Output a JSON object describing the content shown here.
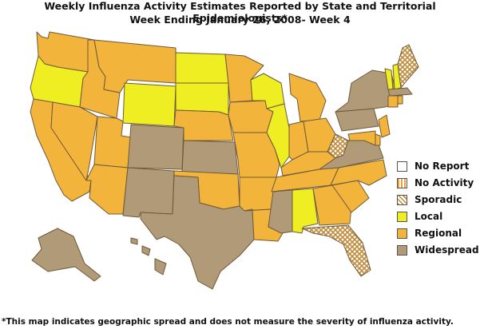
{
  "title_line1": "Weekly Influenza Activity Estimates Reported by State and Territorial Epidemiologists*",
  "title_line2": "Week Ending January 26, 2008- Week  4",
  "footnote": "*This map indicates geographic spread and does not measure the severity of influenza activity.",
  "colors": {
    "no_report": "#ffffff",
    "no_activity_bg": "#ffffff",
    "no_activity_stripe": "#e8a040",
    "sporadic_bg": "#ffffff",
    "sporadic_hatch": "#c08a3a",
    "local": "#eeee22",
    "regional": "#f2b43a",
    "widespread": "#b09a78",
    "border": "#6e5a3a"
  },
  "legend": [
    {
      "key": "no_report",
      "label": "No Report"
    },
    {
      "key": "no_activity",
      "label": "No Activity"
    },
    {
      "key": "sporadic",
      "label": "Sporadic"
    },
    {
      "key": "local",
      "label": "Local"
    },
    {
      "key": "regional",
      "label": "Regional"
    },
    {
      "key": "widespread",
      "label": "Widespread"
    }
  ],
  "states": {
    "WA": "regional",
    "OR": "local",
    "CA": "regional",
    "NV": "regional",
    "ID": "regional",
    "MT": "regional",
    "WY": "local",
    "UT": "regional",
    "AZ": "regional",
    "CO": "widespread",
    "NM": "widespread",
    "ND": "local",
    "SD": "local",
    "NE": "regional",
    "KS": "widespread",
    "OK": "regional",
    "TX": "widespread",
    "MN": "regional",
    "IA": "regional",
    "MO": "regional",
    "AR": "regional",
    "LA": "regional",
    "WI": "local",
    "IL": "local",
    "MI": "regional",
    "IN": "regional",
    "OH": "regional",
    "KY": "regional",
    "TN": "regional",
    "MS": "widespread",
    "AL": "local",
    "GA": "regional",
    "FL": "sporadic",
    "SC": "regional",
    "NC": "regional",
    "VA": "widespread",
    "WV": "sporadic",
    "PA": "widespread",
    "NY": "widespread",
    "VT": "local",
    "NH": "local",
    "ME": "sporadic",
    "MA": "widespread",
    "CT": "regional",
    "RI": "regional",
    "NJ": "regional",
    "DE": "regional",
    "MD": "regional",
    "AK": "widespread",
    "HI": "widespread"
  }
}
